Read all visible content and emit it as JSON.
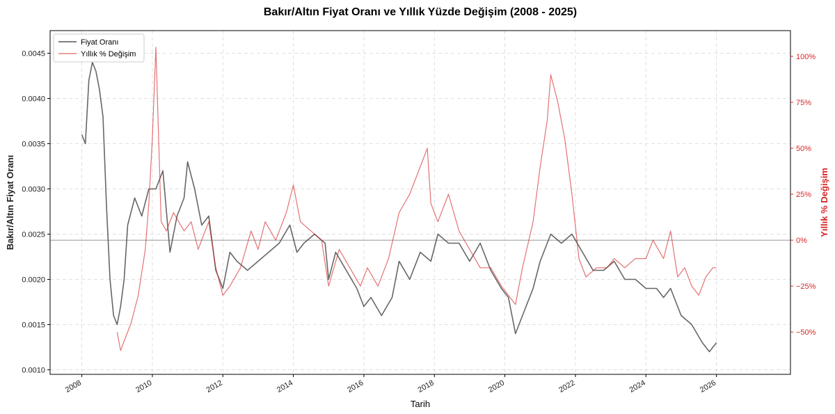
{
  "chart_data": {
    "type": "line",
    "title": "Bakır/Altın Fiyat Oranı ve Yıllık Yüzde Değişim (2008 - 2025)",
    "xlabel": "Tarih",
    "ylabel_left": "Bakır/Altın Fiyat Oranı",
    "ylabel_right": "Yıllık % Değişim",
    "xlim": [
      2007.1,
      2028.1
    ],
    "ylim_left": [
      0.00095,
      0.00475
    ],
    "ylim_right": [
      -73,
      114
    ],
    "x_ticks": [
      2008,
      2010,
      2012,
      2014,
      2016,
      2018,
      2020,
      2022,
      2024,
      2026
    ],
    "x_tick_labels": [
      "2008",
      "2010",
      "2012",
      "2014",
      "2016",
      "2018",
      "2020",
      "2022",
      "2024",
      "2026"
    ],
    "y_left_ticks": [
      0.001,
      0.0015,
      0.002,
      0.0025,
      0.003,
      0.0035,
      0.004,
      0.0045
    ],
    "y_left_tick_labels": [
      "0.0010",
      "0.0015",
      "0.0020",
      "0.0025",
      "0.0030",
      "0.0035",
      "0.0040",
      "0.0045"
    ],
    "y_right_ticks": [
      -50,
      -25,
      0,
      25,
      50,
      75,
      100
    ],
    "y_right_tick_labels": [
      "−50%",
      "−25%",
      "0%",
      "25%",
      "50%",
      "75%",
      "100%"
    ],
    "zero_line_right": 0,
    "grid": true,
    "legend_position": "top-left",
    "series": [
      {
        "name": "Fiyat Oranı",
        "axis": "left",
        "color": "#555555",
        "x": [
          2008.0,
          2008.1,
          2008.2,
          2008.3,
          2008.4,
          2008.5,
          2008.6,
          2008.7,
          2008.8,
          2008.9,
          2009.0,
          2009.1,
          2009.2,
          2009.3,
          2009.5,
          2009.7,
          2009.9,
          2010.1,
          2010.3,
          2010.5,
          2010.7,
          2010.9,
          2011.0,
          2011.2,
          2011.4,
          2011.6,
          2011.8,
          2012.0,
          2012.2,
          2012.4,
          2012.7,
          2013.0,
          2013.3,
          2013.6,
          2013.9,
          2014.1,
          2014.3,
          2014.6,
          2014.9,
          2015.0,
          2015.2,
          2015.5,
          2015.8,
          2016.0,
          2016.2,
          2016.5,
          2016.8,
          2017.0,
          2017.3,
          2017.6,
          2017.9,
          2018.1,
          2018.4,
          2018.7,
          2019.0,
          2019.3,
          2019.6,
          2019.9,
          2020.1,
          2020.3,
          2020.5,
          2020.8,
          2021.0,
          2021.3,
          2021.6,
          2021.9,
          2022.2,
          2022.5,
          2022.8,
          2023.1,
          2023.4,
          2023.7,
          2024.0,
          2024.3,
          2024.5,
          2024.7,
          2025.0,
          2025.3,
          2025.6,
          2025.8,
          2026.0
        ],
        "values": [
          0.0036,
          0.0035,
          0.0042,
          0.0044,
          0.0043,
          0.0041,
          0.0038,
          0.0028,
          0.002,
          0.0016,
          0.0015,
          0.0017,
          0.002,
          0.0026,
          0.0029,
          0.0027,
          0.003,
          0.003,
          0.0032,
          0.0023,
          0.0027,
          0.0029,
          0.0033,
          0.003,
          0.0026,
          0.0027,
          0.0021,
          0.0019,
          0.0023,
          0.0022,
          0.0021,
          0.0022,
          0.0023,
          0.0024,
          0.0026,
          0.0023,
          0.0024,
          0.0025,
          0.0024,
          0.002,
          0.0023,
          0.0021,
          0.0019,
          0.0017,
          0.0018,
          0.0016,
          0.0018,
          0.0022,
          0.002,
          0.0023,
          0.0022,
          0.0025,
          0.0024,
          0.0024,
          0.0022,
          0.0024,
          0.0021,
          0.0019,
          0.0018,
          0.0014,
          0.0016,
          0.0019,
          0.0022,
          0.0025,
          0.0024,
          0.0025,
          0.0023,
          0.0021,
          0.0021,
          0.0022,
          0.002,
          0.002,
          0.0019,
          0.0019,
          0.0018,
          0.0019,
          0.0016,
          0.0015,
          0.0013,
          0.0012,
          0.0013
        ]
      },
      {
        "name": "Yıllık % Değişim",
        "axis": "right",
        "color": "#d62728",
        "x": [
          2009.0,
          2009.1,
          2009.2,
          2009.4,
          2009.6,
          2009.8,
          2009.9,
          2010.0,
          2010.1,
          2010.25,
          2010.4,
          2010.6,
          2010.9,
          2011.1,
          2011.3,
          2011.6,
          2011.8,
          2012.0,
          2012.2,
          2012.5,
          2012.8,
          2013.0,
          2013.2,
          2013.5,
          2013.8,
          2014.0,
          2014.2,
          2014.5,
          2014.8,
          2015.0,
          2015.3,
          2015.6,
          2015.9,
          2016.1,
          2016.4,
          2016.7,
          2017.0,
          2017.3,
          2017.6,
          2017.8,
          2017.9,
          2018.1,
          2018.4,
          2018.7,
          2019.0,
          2019.3,
          2019.6,
          2019.9,
          2020.1,
          2020.3,
          2020.5,
          2020.8,
          2021.0,
          2021.2,
          2021.3,
          2021.5,
          2021.7,
          2021.9,
          2022.1,
          2022.3,
          2022.6,
          2022.9,
          2023.1,
          2023.4,
          2023.7,
          2024.0,
          2024.2,
          2024.5,
          2024.7,
          2024.9,
          2025.1,
          2025.3,
          2025.5,
          2025.7,
          2025.9,
          2026.0
        ],
        "values": [
          -50,
          -60,
          -55,
          -45,
          -30,
          -5,
          20,
          55,
          105,
          10,
          5,
          15,
          5,
          10,
          -5,
          10,
          -15,
          -30,
          -25,
          -15,
          5,
          -5,
          10,
          0,
          15,
          30,
          10,
          5,
          0,
          -25,
          -5,
          -15,
          -25,
          -15,
          -25,
          -10,
          15,
          25,
          40,
          50,
          20,
          10,
          25,
          5,
          -5,
          -15,
          -15,
          -25,
          -30,
          -35,
          -15,
          10,
          40,
          65,
          90,
          75,
          55,
          25,
          -10,
          -20,
          -15,
          -15,
          -10,
          -15,
          -10,
          -10,
          0,
          -10,
          5,
          -20,
          -15,
          -25,
          -30,
          -20,
          -15,
          -15
        ]
      }
    ]
  }
}
